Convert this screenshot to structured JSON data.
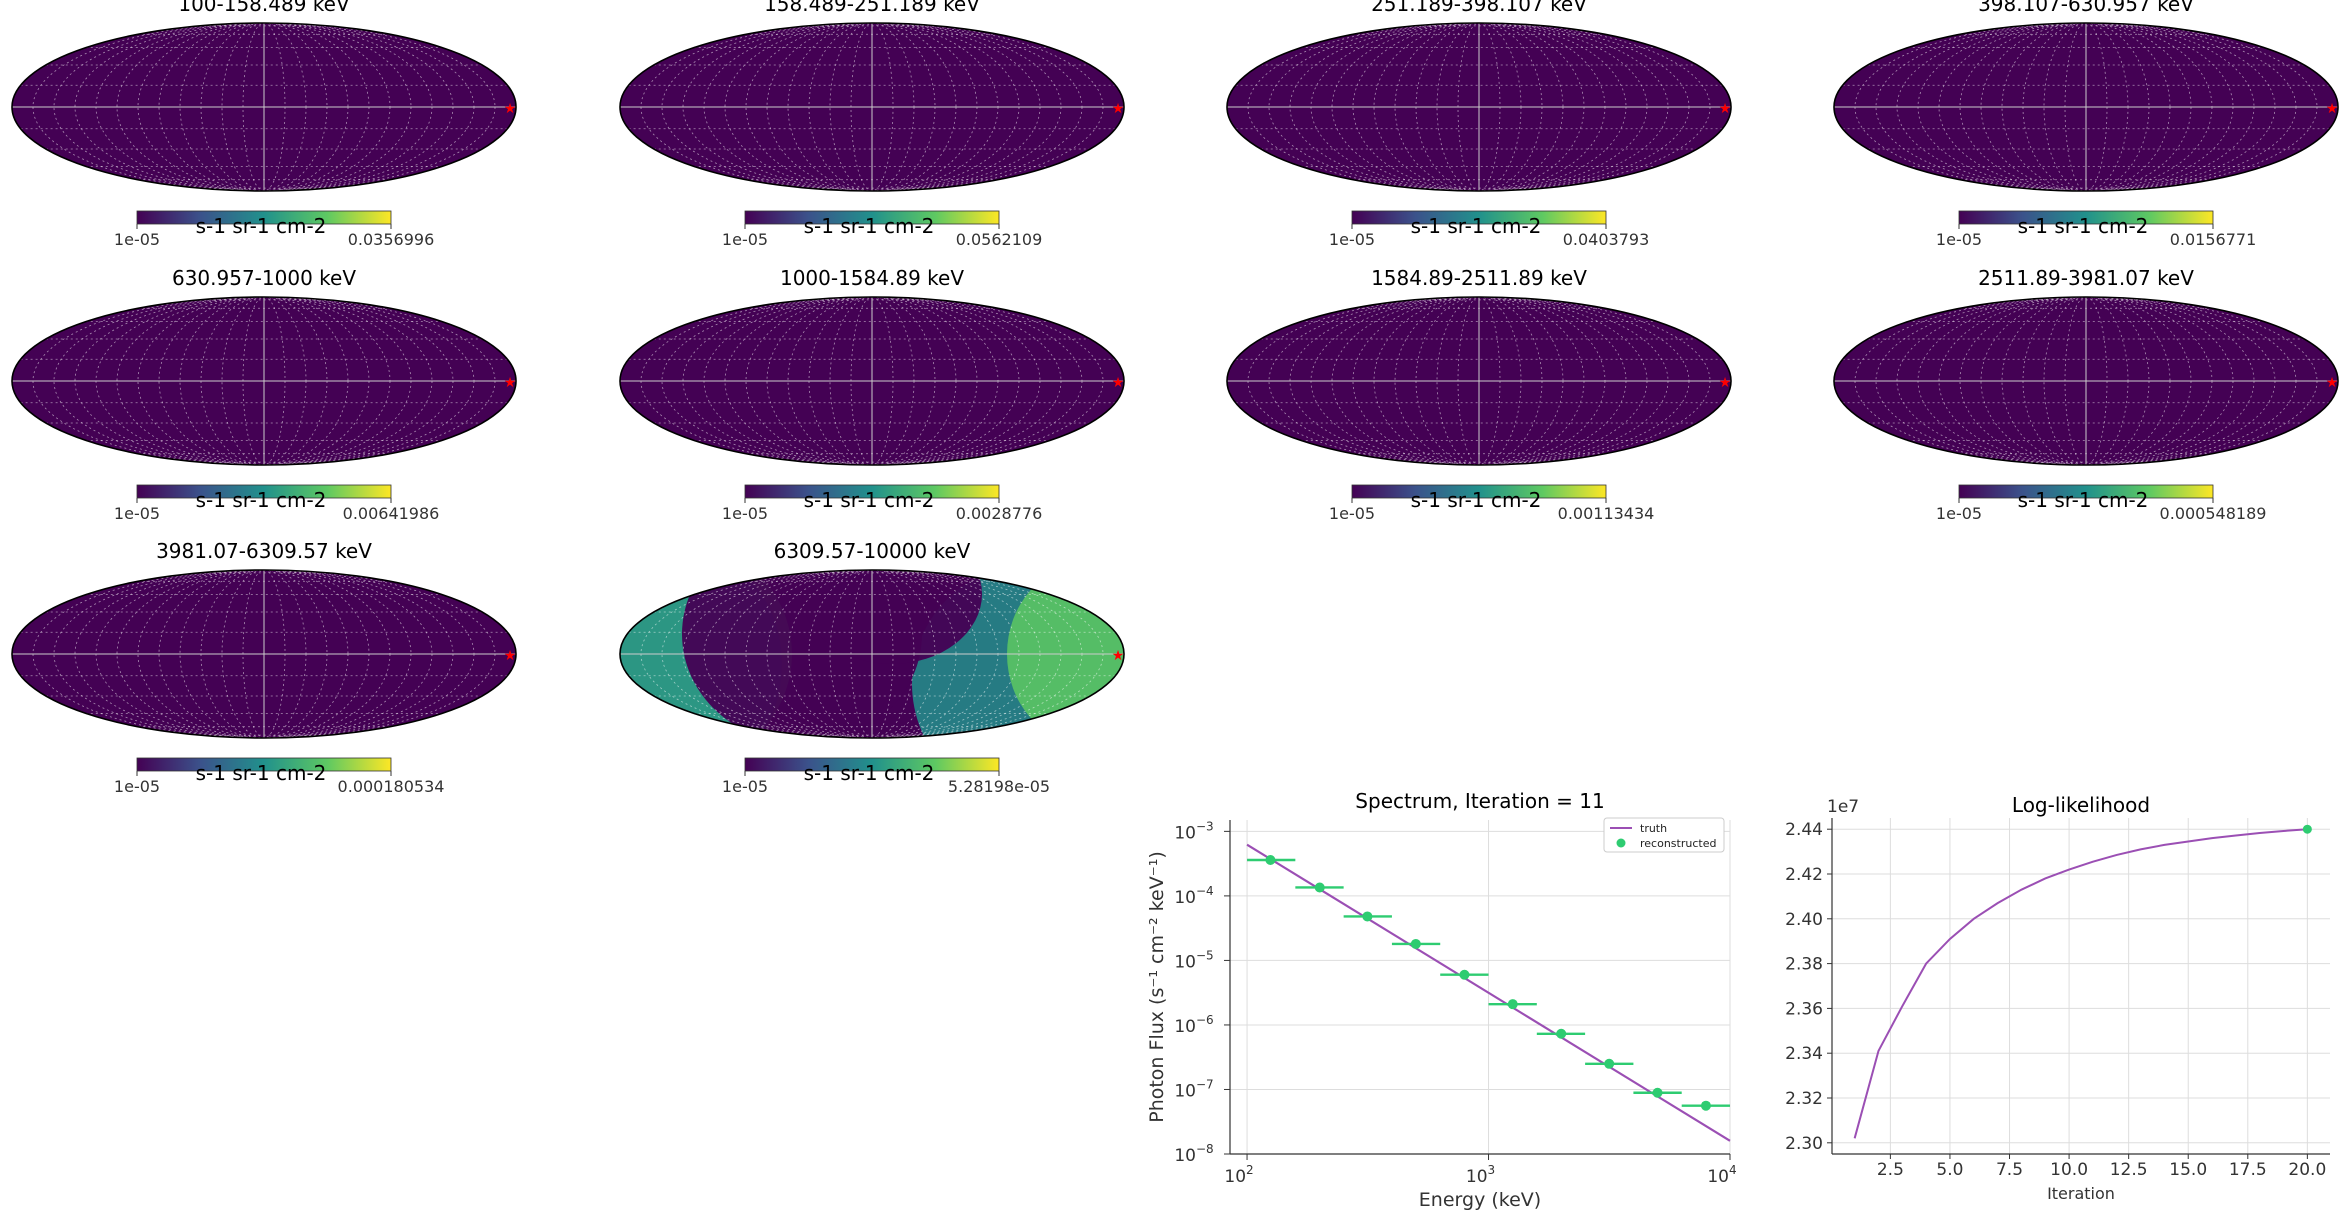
{
  "chart_data": [
    {
      "type": "heatmap",
      "title": "100-158.489 keV",
      "colorbar": {
        "label": "s-1 sr-1 cm-2",
        "min": "1e-05",
        "max": "0.0356996"
      },
      "colormap": "viridis",
      "projection": "mollweide",
      "source_marker": "red-star"
    },
    {
      "type": "heatmap",
      "title": "158.489-251.189 keV",
      "colorbar": {
        "label": "s-1 sr-1 cm-2",
        "min": "1e-05",
        "max": "0.0562109"
      },
      "colormap": "viridis",
      "projection": "mollweide",
      "source_marker": "red-star"
    },
    {
      "type": "heatmap",
      "title": "251.189-398.107 keV",
      "colorbar": {
        "label": "s-1 sr-1 cm-2",
        "min": "1e-05",
        "max": "0.0403793"
      },
      "colormap": "viridis",
      "projection": "mollweide",
      "source_marker": "red-star"
    },
    {
      "type": "heatmap",
      "title": "398.107-630.957 keV",
      "colorbar": {
        "label": "s-1 sr-1 cm-2",
        "min": "1e-05",
        "max": "0.0156771"
      },
      "colormap": "viridis",
      "projection": "mollweide",
      "source_marker": "red-star"
    },
    {
      "type": "heatmap",
      "title": "630.957-1000 keV",
      "colorbar": {
        "label": "s-1 sr-1 cm-2",
        "min": "1e-05",
        "max": "0.00641986"
      },
      "colormap": "viridis",
      "projection": "mollweide",
      "source_marker": "red-star"
    },
    {
      "type": "heatmap",
      "title": "1000-1584.89 keV",
      "colorbar": {
        "label": "s-1 sr-1 cm-2",
        "min": "1e-05",
        "max": "0.0028776"
      },
      "colormap": "viridis",
      "projection": "mollweide",
      "source_marker": "red-star"
    },
    {
      "type": "heatmap",
      "title": "1584.89-2511.89 keV",
      "colorbar": {
        "label": "s-1 sr-1 cm-2",
        "min": "1e-05",
        "max": "0.00113434"
      },
      "colormap": "viridis",
      "projection": "mollweide",
      "source_marker": "red-star"
    },
    {
      "type": "heatmap",
      "title": "2511.89-3981.07 keV",
      "colorbar": {
        "label": "s-1 sr-1 cm-2",
        "min": "1e-05",
        "max": "0.000548189"
      },
      "colormap": "viridis",
      "projection": "mollweide",
      "source_marker": "red-star"
    },
    {
      "type": "heatmap",
      "title": "3981.07-6309.57 keV",
      "colorbar": {
        "label": "s-1 sr-1 cm-2",
        "min": "1e-05",
        "max": "0.000180534"
      },
      "colormap": "viridis",
      "projection": "mollweide",
      "source_marker": "red-star"
    },
    {
      "type": "heatmap",
      "title": "6309.57-10000 keV",
      "colorbar": {
        "label": "s-1 sr-1 cm-2",
        "min": "1e-05",
        "max": "5.28198e-05"
      },
      "colormap": "viridis",
      "projection": "mollweide",
      "source_marker": "red-star",
      "style": "diffuse"
    },
    {
      "type": "line",
      "title": "Spectrum, Iteration = 11",
      "xlabel": "Energy (keV)",
      "ylabel": "Photon Flux (s⁻¹ cm⁻² keV⁻¹)",
      "xscale": "log",
      "yscale": "log",
      "xlim": [
        85,
        10000
      ],
      "ylim": [
        1e-08,
        0.0015
      ],
      "xticks": [
        {
          "v": 100,
          "m": "10",
          "e": "2"
        },
        {
          "v": 1000,
          "m": "10",
          "e": "3"
        },
        {
          "v": 10000,
          "m": "10",
          "e": "4"
        }
      ],
      "yticks": [
        {
          "v": 1e-08,
          "m": "10",
          "e": "−8"
        },
        {
          "v": 1e-07,
          "m": "10",
          "e": "−7"
        },
        {
          "v": 1e-06,
          "m": "10",
          "e": "−6"
        },
        {
          "v": 1e-05,
          "m": "10",
          "e": "−5"
        },
        {
          "v": 0.0001,
          "m": "10",
          "e": "−4"
        },
        {
          "v": 0.001,
          "m": "10",
          "e": "−3"
        }
      ],
      "grid": true,
      "legend": {
        "position": "top-right",
        "entries": [
          "truth",
          "reconstructed"
        ]
      },
      "series": [
        {
          "name": "truth",
          "color": "#9b4fb4",
          "x": [
            100,
            10000
          ],
          "y": [
            0.000622,
            1.6e-08
          ]
        },
        {
          "name": "reconstructed",
          "color": "#2ecc71",
          "x": [
            125,
            200,
            315,
            500,
            795,
            1260,
            2000,
            3160,
            5010,
            7950
          ],
          "xerr_lo": [
            100,
            158.489,
            251.189,
            398.107,
            630.957,
            1000,
            1584.89,
            2511.89,
            3981.07,
            6309.57
          ],
          "xerr_hi": [
            158.489,
            251.189,
            398.107,
            630.957,
            1000,
            1584.89,
            2511.89,
            3981.07,
            6309.57,
            10000
          ],
          "y": [
            0.00036,
            0.000135,
            4.8e-05,
            1.8e-05,
            6e-06,
            2.1e-06,
            7.3e-07,
            2.5e-07,
            8.9e-08,
            5.6e-08
          ]
        }
      ]
    },
    {
      "type": "line",
      "title": "Log-likelihood",
      "xlabel": "Iteration",
      "ylabel": "",
      "offset_text": "1e7",
      "xlim": [
        0.05,
        20.95
      ],
      "ylim": [
        2.295,
        2.445
      ],
      "xticks": [
        2.5,
        5.0,
        7.5,
        10.0,
        12.5,
        15.0,
        17.5,
        20.0
      ],
      "yticks": [
        2.3,
        2.32,
        2.34,
        2.36,
        2.38,
        2.4,
        2.42,
        2.44
      ],
      "grid": true,
      "series": [
        {
          "name": "",
          "color": "#9b4fb4",
          "x": [
            1,
            2,
            3,
            4,
            5,
            6,
            7,
            8,
            9,
            10,
            11,
            12,
            13,
            14,
            15,
            16,
            17,
            18,
            19,
            20
          ],
          "y": [
            2.302,
            2.341,
            2.361,
            2.38,
            2.391,
            2.4,
            2.407,
            2.413,
            2.418,
            2.422,
            2.4255,
            2.4285,
            2.431,
            2.433,
            2.4345,
            2.436,
            2.4372,
            2.4383,
            2.4392,
            2.44
          ]
        },
        {
          "name": "",
          "color": "#2ecc71",
          "marker": "point",
          "x": [
            20
          ],
          "y": [
            2.44
          ]
        }
      ]
    }
  ]
}
